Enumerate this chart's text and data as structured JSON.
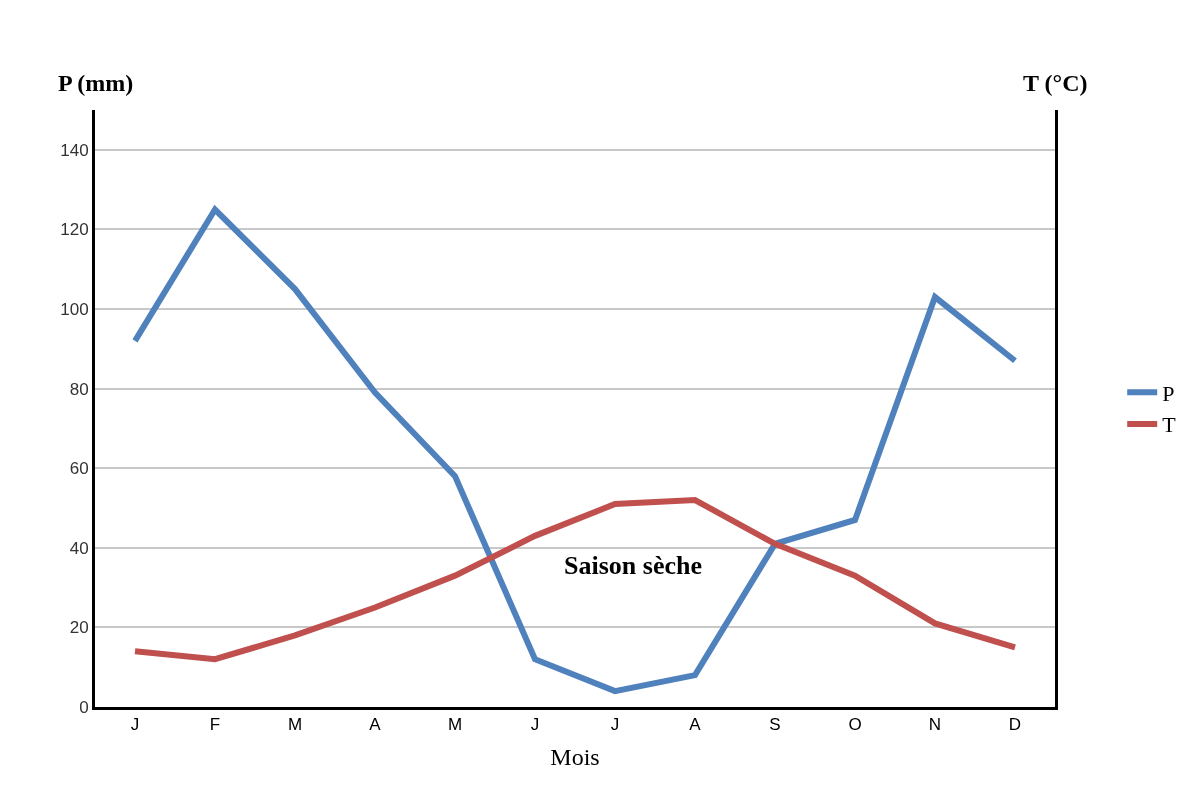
{
  "chart_data": {
    "type": "line",
    "xlabel": "Mois",
    "ylabel": "P (mm)",
    "y2label": "T (°C)",
    "categories": [
      "J",
      "F",
      "M",
      "A",
      "M",
      "J",
      "J",
      "A",
      "S",
      "O",
      "N",
      "D"
    ],
    "series": [
      {
        "name": "P",
        "color": "#4f81bd",
        "values": [
          92,
          125,
          105,
          79,
          58,
          12,
          4,
          8,
          41,
          47,
          103,
          87
        ]
      },
      {
        "name": "T",
        "color": "#c0504d",
        "values": [
          14,
          12,
          18,
          25,
          33,
          43,
          51,
          52,
          41,
          33,
          21,
          15
        ]
      }
    ],
    "ylim": [
      0,
      150
    ],
    "yticks": [
      0,
      20,
      40,
      60,
      80,
      100,
      120,
      140
    ],
    "annotations": [
      "Saison sèche"
    ],
    "grid": "y",
    "legend": "right",
    "marker": "none",
    "line_style": "solid"
  }
}
